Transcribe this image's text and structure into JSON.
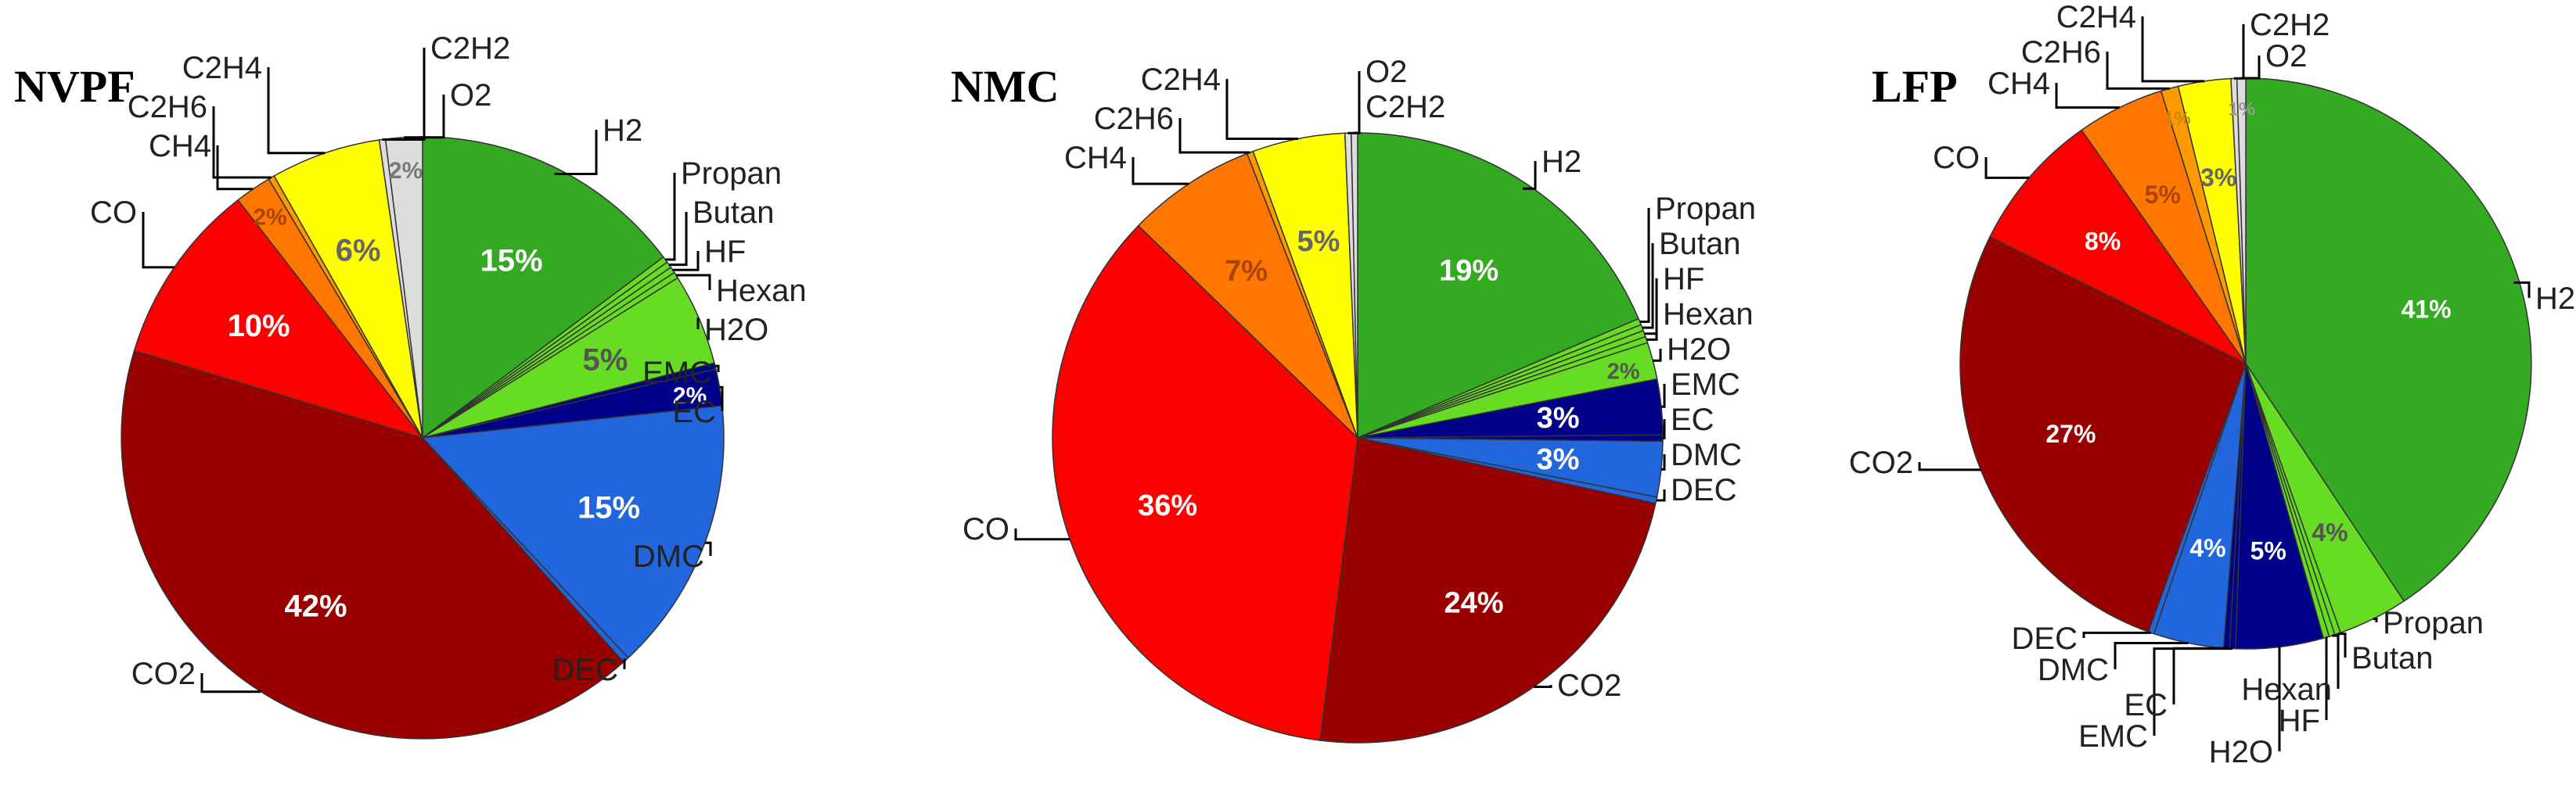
{
  "chart_data": [
    {
      "type": "pie",
      "title": "NVPF",
      "slices": [
        {
          "label": "H2",
          "value": 15,
          "pct_label": "15%",
          "color": "#33aa22",
          "pct_color": "#ffffff"
        },
        {
          "label": "Propan",
          "value": 0,
          "pct_label": "",
          "color": "#66dd22",
          "pct_color": "#555555"
        },
        {
          "label": "Butan",
          "value": 0,
          "pct_label": "",
          "color": "#66dd22",
          "pct_color": "#555555"
        },
        {
          "label": "HF",
          "value": 0,
          "pct_label": "",
          "color": "#66dd22",
          "pct_color": "#555555"
        },
        {
          "label": "Hexan",
          "value": 0,
          "pct_label": "",
          "color": "#66dd22",
          "pct_color": "#555555"
        },
        {
          "label": "H2O",
          "value": 5,
          "pct_label": "5%",
          "color": "#66dd22",
          "pct_color": "#555555"
        },
        {
          "label": "EMC",
          "value": 0,
          "pct_label": "",
          "color": "#000088",
          "pct_color": "#ffffff"
        },
        {
          "label": "EC",
          "value": 2,
          "pct_label": "2%",
          "color": "#000088",
          "pct_color": "#ffffff"
        },
        {
          "label": "DMC",
          "value": 15,
          "pct_label": "15%",
          "color": "#2266dd",
          "pct_color": "#ffffff"
        },
        {
          "label": "DEC",
          "value": 0,
          "pct_label": "",
          "color": "#2266dd",
          "pct_color": "#ffffff"
        },
        {
          "label": "CO2",
          "value": 42,
          "pct_label": "42%",
          "color": "#990000",
          "pct_color": "#ffffff"
        },
        {
          "label": "CO",
          "value": 10,
          "pct_label": "10%",
          "color": "#ff0000",
          "pct_color": "#ffffff"
        },
        {
          "label": "CH4",
          "value": 2,
          "pct_label": "2%",
          "color": "#ff7700",
          "pct_color": "#aa4400"
        },
        {
          "label": "C2H6",
          "value": 0,
          "pct_label": "",
          "color": "#ff9900",
          "pct_color": "#555555"
        },
        {
          "label": "C2H4",
          "value": 6,
          "pct_label": "6%",
          "color": "#ffff00",
          "pct_color": "#666666"
        },
        {
          "label": "C2H2",
          "value": 0,
          "pct_label": "",
          "color": "#dddddd",
          "pct_color": "#777777"
        },
        {
          "label": "O2",
          "value": 2,
          "pct_label": "2%",
          "color": "#dddddd",
          "pct_color": "#777777"
        }
      ]
    },
    {
      "type": "pie",
      "title": "NMC",
      "slices": [
        {
          "label": "H2",
          "value": 19,
          "pct_label": "19%",
          "color": "#33aa22",
          "pct_color": "#ffffff"
        },
        {
          "label": "Propan",
          "value": 0,
          "pct_label": "",
          "color": "#66dd22",
          "pct_color": "#555555"
        },
        {
          "label": "Butan",
          "value": 0,
          "pct_label": "",
          "color": "#66dd22",
          "pct_color": "#555555"
        },
        {
          "label": "HF",
          "value": 0,
          "pct_label": "",
          "color": "#66dd22",
          "pct_color": "#555555"
        },
        {
          "label": "Hexan",
          "value": 0,
          "pct_label": "",
          "color": "#66dd22",
          "pct_color": "#555555"
        },
        {
          "label": "H2O",
          "value": 2,
          "pct_label": "2%",
          "color": "#66dd22",
          "pct_color": "#555555"
        },
        {
          "label": "EMC",
          "value": 3,
          "pct_label": "3%",
          "color": "#000088",
          "pct_color": "#ffffff"
        },
        {
          "label": "EC",
          "value": 0,
          "pct_label": "",
          "color": "#000088",
          "pct_color": "#ffffff"
        },
        {
          "label": "DMC",
          "value": 3,
          "pct_label": "3%",
          "color": "#2266dd",
          "pct_color": "#ffffff"
        },
        {
          "label": "DEC",
          "value": 0,
          "pct_label": "",
          "color": "#2266dd",
          "pct_color": "#ffffff"
        },
        {
          "label": "CO2",
          "value": 24,
          "pct_label": "24%",
          "color": "#990000",
          "pct_color": "#ffffff"
        },
        {
          "label": "CO",
          "value": 36,
          "pct_label": "36%",
          "color": "#ff0000",
          "pct_color": "#ffffff"
        },
        {
          "label": "CH4",
          "value": 7,
          "pct_label": "7%",
          "color": "#ff7700",
          "pct_color": "#aa4400"
        },
        {
          "label": "C2H6",
          "value": 0,
          "pct_label": "",
          "color": "#ff9900",
          "pct_color": "#555555"
        },
        {
          "label": "C2H4",
          "value": 5,
          "pct_label": "5%",
          "color": "#ffff00",
          "pct_color": "#666666"
        },
        {
          "label": "O2",
          "value": 0,
          "pct_label": "",
          "color": "#dddddd",
          "pct_color": "#777777"
        },
        {
          "label": "C2H2",
          "value": 0,
          "pct_label": "",
          "color": "#dddddd",
          "pct_color": "#777777"
        }
      ]
    },
    {
      "type": "pie",
      "title": "LFP",
      "slices": [
        {
          "label": "H2",
          "value": 41,
          "pct_label": "41%",
          "color": "#33aa22",
          "pct_color": "#ffffff"
        },
        {
          "label": "Propan",
          "value": 4,
          "pct_label": "4%",
          "color": "#66dd22",
          "pct_color": "#555555"
        },
        {
          "label": "Butan",
          "value": 0,
          "pct_label": "",
          "color": "#66dd22",
          "pct_color": "#555555"
        },
        {
          "label": "Hexan",
          "value": 0,
          "pct_label": "",
          "color": "#66dd22",
          "pct_color": "#555555"
        },
        {
          "label": "HF",
          "value": 0,
          "pct_label": "",
          "color": "#66dd22",
          "pct_color": "#555555"
        },
        {
          "label": "H2O",
          "value": 5,
          "pct_label": "5%",
          "color": "#000088",
          "pct_color": "#ffffff"
        },
        {
          "label": "EMC",
          "value": 0,
          "pct_label": "",
          "color": "#000088",
          "pct_color": "#ffffff"
        },
        {
          "label": "EC",
          "value": 0,
          "pct_label": "",
          "color": "#000088",
          "pct_color": "#ffffff"
        },
        {
          "label": "DMC",
          "value": 4,
          "pct_label": "4%",
          "color": "#2266dd",
          "pct_color": "#ffffff"
        },
        {
          "label": "DEC",
          "value": 0,
          "pct_label": "",
          "color": "#2266dd",
          "pct_color": "#ffffff"
        },
        {
          "label": "CO2",
          "value": 27,
          "pct_label": "27%",
          "color": "#990000",
          "pct_color": "#ffffff"
        },
        {
          "label": "CO",
          "value": 8,
          "pct_label": "8%",
          "color": "#ff0000",
          "pct_color": "#ffffff"
        },
        {
          "label": "CH4",
          "value": 5,
          "pct_label": "5%",
          "color": "#ff7700",
          "pct_color": "#aa4400"
        },
        {
          "label": "C2H6",
          "value": 1,
          "pct_label": "1%",
          "color": "#ff9900",
          "pct_color": "#cc8800"
        },
        {
          "label": "C2H4",
          "value": 3,
          "pct_label": "3%",
          "color": "#ffff00",
          "pct_color": "#666666"
        },
        {
          "label": "C2H2",
          "value": 0,
          "pct_label": "",
          "color": "#dddddd",
          "pct_color": "#777777"
        },
        {
          "label": "O2",
          "value": 0.5,
          "pct_label": "1%",
          "color": "#dddddd",
          "pct_color": "#999999"
        }
      ]
    }
  ]
}
